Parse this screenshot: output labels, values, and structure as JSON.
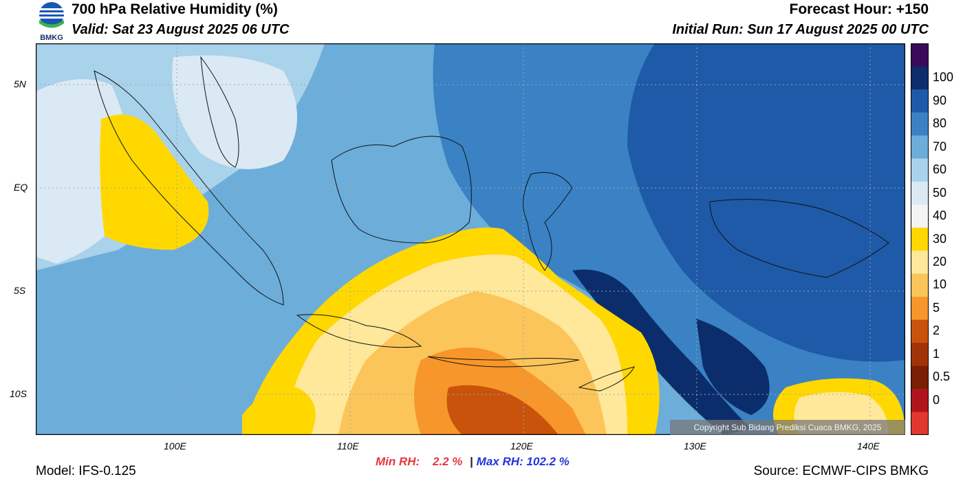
{
  "header": {
    "title": "700 hPa Relative Humidity (%)",
    "valid": "Valid: Sat 23 August 2025 06 UTC",
    "forecast_hour": "Forecast Hour: +150",
    "initial_run": "Initial Run: Sun 17 August 2025 00 UTC"
  },
  "logo": {
    "text": "BMKG",
    "colors": [
      "#1a56b3",
      "#3bb44a",
      "#ffffff"
    ]
  },
  "map": {
    "lat_labels": [
      "5N",
      "EQ",
      "5S",
      "10S"
    ],
    "lon_labels": [
      "100E",
      "110E",
      "120E",
      "130E",
      "140E"
    ],
    "copyright": "Copyright Sub Bidang Prediksi Cuaca BMKG, 2025"
  },
  "legend": {
    "labels": [
      "100",
      "90",
      "80",
      "70",
      "60",
      "50",
      "40",
      "30",
      "20",
      "10",
      "5",
      "2",
      "1",
      "0.5",
      "0"
    ],
    "colors": [
      "#3b0a5a",
      "#0c2d6b",
      "#1f5aa8",
      "#3a82c4",
      "#6cadda",
      "#a9d2eb",
      "#dbe9f4",
      "#f4f4f4",
      "#ffd800",
      "#ffe89a",
      "#fcc55a",
      "#f7962a",
      "#c9530b",
      "#a13306",
      "#7a1f03",
      "#b0141c",
      "#e2372e"
    ]
  },
  "footer": {
    "min_rh_label": "Min RH:",
    "min_rh_value": "2.2 %",
    "separator": "|",
    "max_rh_label": "Max RH:",
    "max_rh_value": "102.2 %",
    "model": "Model: IFS-0.125",
    "source": "Source: ECMWF-CIPS BMKG"
  }
}
